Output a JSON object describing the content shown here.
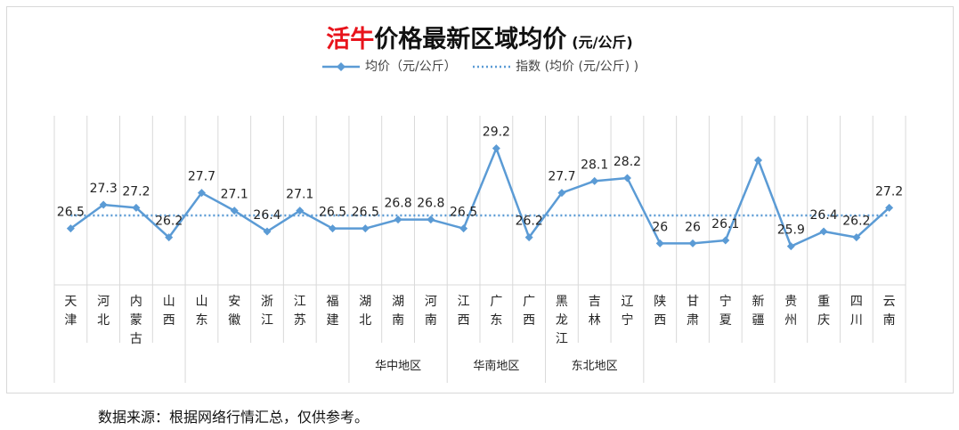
{
  "title": {
    "red": "活牛",
    "black": "价格最新区域均价",
    "unit": "(元/公斤)"
  },
  "legend": {
    "series1": "均价（元/公斤）",
    "series2": "指数 (均价 (元/公斤) )"
  },
  "source": "数据来源：根据网络行情汇总，仅供参考。",
  "colors": {
    "line": "#5b9bd5",
    "accent": "#e8141c"
  },
  "chart_data": {
    "type": "line",
    "categories": [
      "天津",
      "河北",
      "内蒙古",
      "山西",
      "山东",
      "安徽",
      "浙江",
      "江苏",
      "福建",
      "湖北",
      "湖南",
      "河南",
      "江西",
      "广东",
      "广西",
      "黑龙江",
      "吉林",
      "辽宁",
      "陕西",
      "甘肃",
      "宁夏",
      "新疆",
      "贵州",
      "重庆",
      "四川",
      "云南"
    ],
    "category_labels": [
      [
        "天",
        "津"
      ],
      [
        "河",
        "北"
      ],
      [
        "内",
        "蒙",
        "古"
      ],
      [
        "山",
        "西"
      ],
      [
        "山",
        "东"
      ],
      [
        "安",
        "徽"
      ],
      [
        "浙",
        "江"
      ],
      [
        "江",
        "苏"
      ],
      [
        "福",
        "建"
      ],
      [
        "湖",
        "北"
      ],
      [
        "湖",
        "南"
      ],
      [
        "河",
        "南"
      ],
      [
        "江",
        "西"
      ],
      [
        "广",
        "东"
      ],
      [
        "广",
        "西"
      ],
      [
        "黑",
        "龙",
        "江"
      ],
      [
        "吉",
        "林"
      ],
      [
        "辽",
        "宁"
      ],
      [
        "陕",
        "西"
      ],
      [
        "甘",
        "肃"
      ],
      [
        "宁",
        "夏"
      ],
      [
        "新",
        "疆"
      ],
      [
        "贵",
        "州"
      ],
      [
        "重",
        "庆"
      ],
      [
        "四",
        "川"
      ],
      [
        "云",
        "南"
      ]
    ],
    "series": [
      {
        "name": "均价（元/公斤）",
        "style": "solid-marker",
        "values": [
          26.5,
          27.3,
          27.2,
          26.2,
          27.7,
          27.1,
          26.4,
          27.1,
          26.5,
          26.5,
          26.8,
          26.8,
          26.5,
          29.2,
          26.2,
          27.7,
          28.1,
          28.2,
          26,
          26,
          26.1,
          28.8,
          25.9,
          26.4,
          26.2,
          27.2
        ],
        "labels": [
          "26.5",
          "27.3",
          "27.2",
          "26.2",
          "27.7",
          "27.1",
          "26.4",
          "27.1",
          "26.5",
          "26.5",
          "26.8",
          "26.8",
          "26.5",
          "29.2",
          "26.2",
          "27.7",
          "28.1",
          "28.2",
          "26",
          "26",
          "26.1",
          "",
          "25.9",
          "26.4",
          "26.2",
          "27.2"
        ]
      },
      {
        "name": "指数 (均价 (元/公斤) )",
        "style": "dotted",
        "value": 26.94
      }
    ],
    "regions": [
      {
        "label": "华中地区",
        "start": 9,
        "end": 11
      },
      {
        "label": "华南地区",
        "start": 12,
        "end": 14
      },
      {
        "label": "东北地区",
        "start": 15,
        "end": 17
      }
    ],
    "group_dividers": [
      3,
      8,
      11,
      14,
      17,
      21
    ],
    "ylim": [
      24.6,
      30.3
    ],
    "grid": "vertical-category"
  }
}
